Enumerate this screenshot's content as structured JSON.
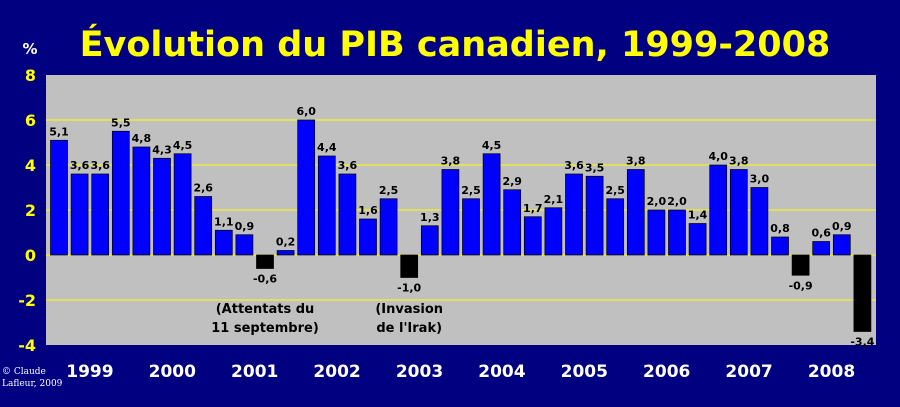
{
  "chart_data": {
    "type": "bar",
    "title": "Évolution du PIB canadien, 1999-2008",
    "ylabel": "%",
    "ylim": [
      -4,
      8
    ],
    "yticks": [
      "8",
      "6",
      "4",
      "2",
      "0",
      "-2",
      "-4"
    ],
    "ytick_values": [
      8,
      6,
      4,
      2,
      0,
      -2,
      -4
    ],
    "grid": true,
    "colors": {
      "positive": "#0000ff",
      "negative": "#000000",
      "plot_background": "#c0c0c0",
      "page_background": "#000080",
      "gridline": "#ffff00",
      "title": "#ffff00"
    },
    "year_labels": [
      "1999",
      "2000",
      "2001",
      "2002",
      "2003",
      "2004",
      "2005",
      "2006",
      "2007",
      "2008"
    ],
    "values": [
      5.1,
      3.6,
      3.6,
      5.5,
      4.8,
      4.3,
      4.5,
      2.6,
      1.1,
      0.9,
      -0.6,
      0.2,
      6.0,
      4.4,
      3.6,
      1.6,
      2.5,
      -1.0,
      1.3,
      3.8,
      2.5,
      4.5,
      2.9,
      1.7,
      2.1,
      3.6,
      3.5,
      2.5,
      3.8,
      2.0,
      2.0,
      1.4,
      4.0,
      3.8,
      3.0,
      0.8,
      -0.9,
      0.6,
      0.9,
      -3.4
    ],
    "data_labels": [
      "5,1",
      "3,6",
      "3,6",
      "5,5",
      "4,8",
      "4,3",
      "4,5",
      "2,6",
      "1,1",
      "0,9",
      "-0,6",
      "0,2",
      "6,0",
      "4,4",
      "3,6",
      "1,6",
      "2,5",
      "-1,0",
      "1,3",
      "3,8",
      "2,5",
      "4,5",
      "2,9",
      "1,7",
      "2,1",
      "3,6",
      "3,5",
      "2,5",
      "3,8",
      "2,0",
      "2,0",
      "1,4",
      "4,0",
      "3,8",
      "3,0",
      "0,8",
      "-0,9",
      "0,6",
      "0,9",
      "-3,4"
    ],
    "annotations": [
      {
        "bar_index": 10,
        "lines": [
          "(Attentats du",
          "11 septembre)"
        ]
      },
      {
        "bar_index": 17,
        "lines": [
          "(Invasion",
          "de l'Irak)"
        ]
      }
    ]
  },
  "credit": {
    "line1": "© Claude",
    "line2": "Lafleur, 2009"
  }
}
